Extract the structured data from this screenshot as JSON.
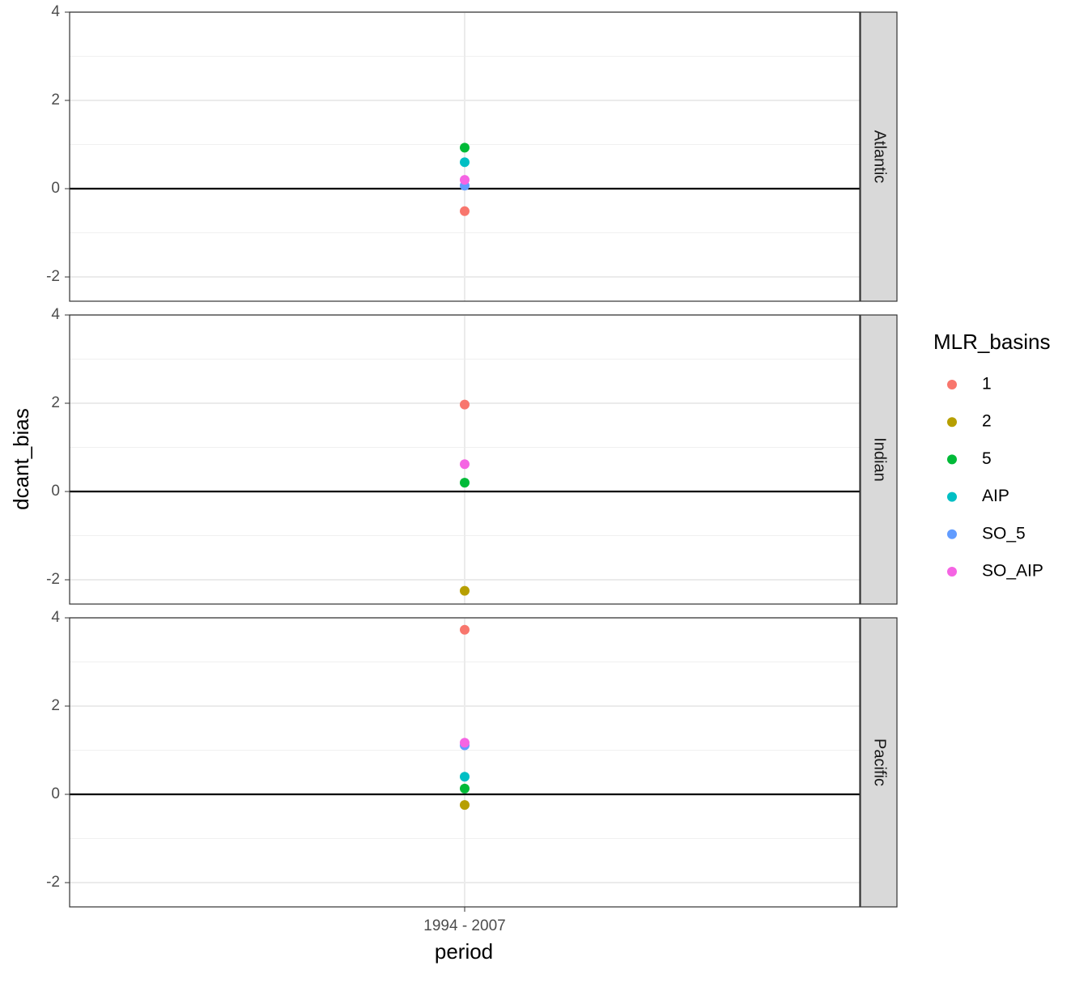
{
  "chart_data": {
    "type": "scatter",
    "categories": [
      "1994 - 2007"
    ],
    "facets": [
      "Atlantic",
      "Indian",
      "Pacific"
    ],
    "x_label": "period",
    "y_label": "dcant_bias",
    "legend_title": "MLR_basins",
    "ylim": [
      -2.55,
      4.0
    ],
    "yticks": [
      -2,
      0,
      2,
      4
    ],
    "grid": true,
    "hline": 0,
    "series": [
      {
        "name": "1",
        "color": "#F8766D",
        "values": [
          -0.51,
          1.97,
          3.73
        ]
      },
      {
        "name": "2",
        "color": "#B79F00",
        "values": [
          null,
          -2.25,
          -0.24
        ]
      },
      {
        "name": "5",
        "color": "#00BA38",
        "values": [
          0.93,
          0.2,
          0.13
        ]
      },
      {
        "name": "AIP",
        "color": "#00BFC4",
        "values": [
          0.6,
          null,
          0.4
        ]
      },
      {
        "name": "SO_5",
        "color": "#619CFF",
        "values": [
          0.07,
          null,
          1.11
        ]
      },
      {
        "name": "SO_AIP",
        "color": "#F564E3",
        "values": [
          0.2,
          0.62,
          1.17
        ]
      }
    ]
  }
}
